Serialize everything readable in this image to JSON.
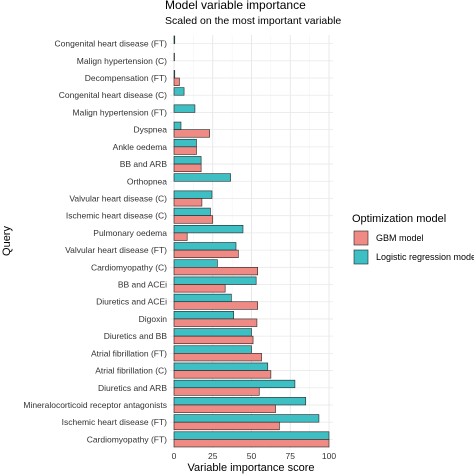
{
  "chart_data": {
    "type": "bar",
    "orientation": "horizontal",
    "title": "Model variable importance",
    "subtitle": "Scaled on the most important variable",
    "xlabel": "Variable importance score",
    "ylabel": "Query",
    "xlim": [
      0,
      100
    ],
    "xticks": [
      "0",
      "25",
      "50",
      "75",
      "100"
    ],
    "grid": true,
    "legend": {
      "title": "Optimization model",
      "position": "right"
    },
    "categories": [
      "Congenital heart disease (FT)",
      "Malign hypertension (C)",
      "Decompensation (FT)",
      "Congenital heart disease (C)",
      "Malign hypertension (FT)",
      "Dyspnea",
      "Ankle oedema",
      "BB and ARB",
      "Orthopnea",
      "Valvular heart disease (C)",
      "Ischemic heart disease (C)",
      "Pulmonary oedema",
      "Valvular heart disease (FT)",
      "Cardiomyopathy (C)",
      "BB and ACEi",
      "Diuretics and ACEi",
      "Digoxin",
      "Diuretics and BB",
      "Atrial fibrillation (FT)",
      "Atrial fibrillation (C)",
      "Diuretics and ARB",
      "Mineralocorticoid receptor antagonists",
      "Ischemic heart disease (FT)",
      "Cardiomyopathy (FT)"
    ],
    "series": [
      {
        "name": "Logistic regression model",
        "color": "#3dbfc4",
        "values": [
          0.5,
          0.3,
          0.5,
          6.5,
          13.5,
          4.5,
          14.5,
          17.5,
          36.5,
          24.5,
          23.5,
          44.5,
          40,
          28,
          53,
          37,
          38.5,
          50,
          50,
          60.5,
          78,
          85,
          93.5,
          100
        ]
      },
      {
        "name": "GBM model",
        "color": "#ef8a85",
        "values": [
          0,
          0,
          3.5,
          0,
          0,
          23,
          14.5,
          17.5,
          0,
          18,
          25,
          8.5,
          41.5,
          54,
          33,
          54,
          53.5,
          51,
          56.5,
          62.5,
          55,
          65.5,
          68,
          100
        ]
      }
    ]
  }
}
